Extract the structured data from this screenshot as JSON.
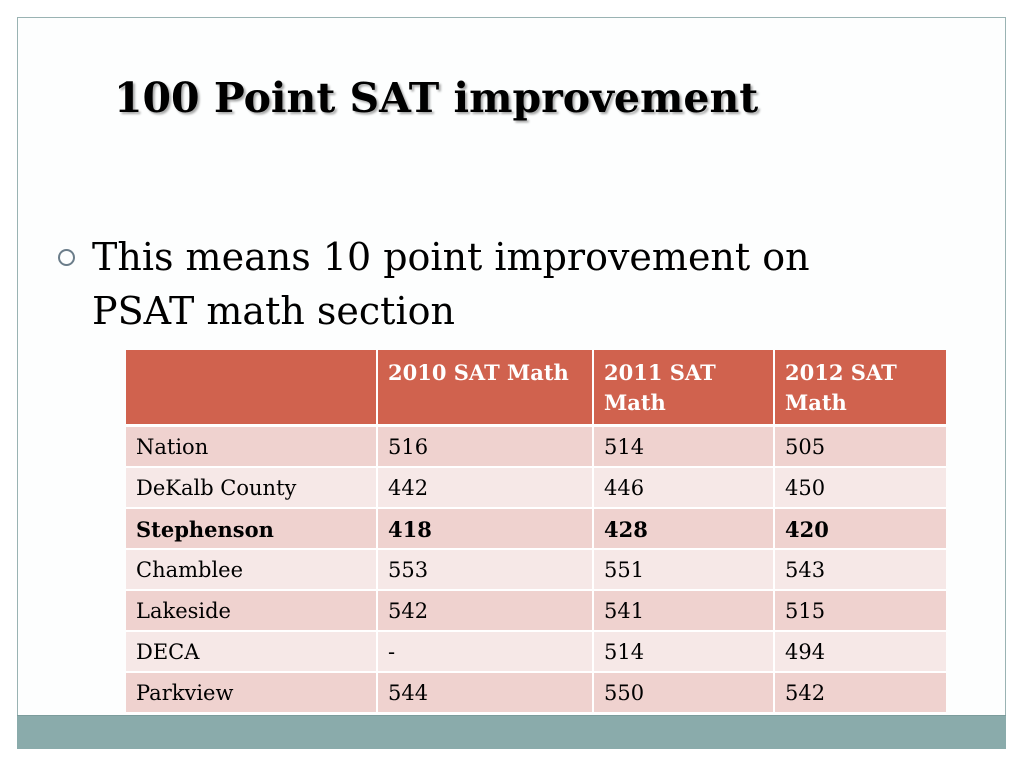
{
  "slide": {
    "title": "100 Point SAT improvement",
    "bullet": "This means 10 point improvement on PSAT math section"
  },
  "colors": {
    "header_fill": "#d0624e",
    "row_fill_dark": "#efd2cf",
    "row_fill_light": "#f6e8e7",
    "band": "#8aabab",
    "frame_border": "#9ab3b3"
  },
  "icons": {
    "bullet": "hollow-circle-bullet"
  },
  "table": {
    "headers": [
      "",
      "2010 SAT Math",
      "2011 SAT Math",
      "2012 SAT Math"
    ],
    "rows": [
      {
        "cells": [
          "Nation",
          "516",
          "514",
          "505"
        ],
        "bold": false
      },
      {
        "cells": [
          "DeKalb County",
          "442",
          "446",
          "450"
        ],
        "bold": false
      },
      {
        "cells": [
          "Stephenson",
          "418",
          "428",
          "420"
        ],
        "bold": true
      },
      {
        "cells": [
          "Chamblee",
          "553",
          "551",
          "543"
        ],
        "bold": false
      },
      {
        "cells": [
          "Lakeside",
          "542",
          "541",
          "515"
        ],
        "bold": false
      },
      {
        "cells": [
          "DECA",
          "-",
          "514",
          "494"
        ],
        "bold": false
      },
      {
        "cells": [
          "Parkview",
          "544",
          "550",
          "542"
        ],
        "bold": false
      }
    ]
  }
}
